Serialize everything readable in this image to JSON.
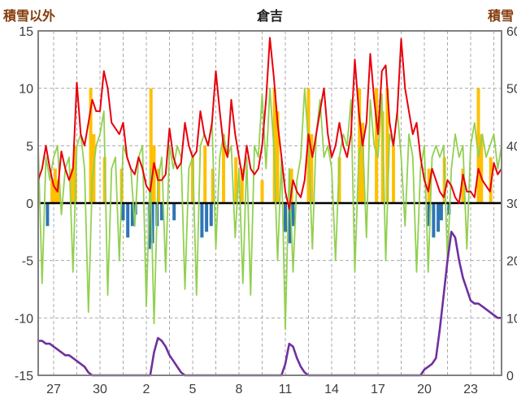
{
  "header": {
    "left_axis_title": "積雪以外",
    "chart_title": "倉吉",
    "right_axis_title": "積雪"
  },
  "colors": {
    "axis_title": "#843c0c",
    "grid": "#aaaaaa",
    "border": "#808080",
    "zero_line": "#000000",
    "temperature": "#e8000b",
    "green_series": "#92d050",
    "precip_bars": "#ffc000",
    "negative_bars": "#2e75b6",
    "snow_depth": "#7030a0"
  },
  "chart_data": {
    "type": "line",
    "title": "倉吉",
    "left_axis": {
      "label": "積雪以外",
      "min": -15,
      "max": 15,
      "ticks": [
        {
          "v": 15,
          "label": "15"
        },
        {
          "v": 10,
          "label": "10"
        },
        {
          "v": 5,
          "label": "5"
        },
        {
          "v": 0,
          "label": "0"
        },
        {
          "v": -5,
          "label": "-5"
        },
        {
          "v": -10,
          "label": "-10"
        },
        {
          "v": -15,
          "label": "-15"
        }
      ]
    },
    "right_axis": {
      "label": "積雪",
      "min": 0,
      "max": 60,
      "ticks": [
        {
          "v": 60,
          "label": "60"
        },
        {
          "v": 50,
          "label": "50"
        },
        {
          "v": 40,
          "label": "40"
        },
        {
          "v": 30,
          "label": "30"
        },
        {
          "v": 20,
          "label": "20"
        },
        {
          "v": 10,
          "label": "10"
        },
        {
          "v": 0,
          "label": "0"
        }
      ]
    },
    "x_axis": {
      "domain_days": [
        0,
        30
      ],
      "gridline_step_days": 1.5,
      "ticks": [
        {
          "day": 1,
          "label": "27"
        },
        {
          "day": 4,
          "label": "30"
        },
        {
          "day": 7,
          "label": "2"
        },
        {
          "day": 10,
          "label": "5"
        },
        {
          "day": 13,
          "label": "8"
        },
        {
          "day": 16,
          "label": "11"
        },
        {
          "day": 19,
          "label": "14"
        },
        {
          "day": 22,
          "label": "17"
        },
        {
          "day": 25,
          "label": "20"
        },
        {
          "day": 28,
          "label": "23"
        }
      ]
    },
    "series": [
      {
        "name": "temperature-red-line",
        "axis": "left",
        "color": "#e8000b",
        "width": 2,
        "x_start": 0,
        "x_step": 0.25,
        "values": [
          2,
          3,
          5,
          3,
          1.5,
          1,
          4.5,
          3,
          2,
          3,
          10.5,
          6,
          5,
          7,
          9,
          8,
          8,
          11.5,
          10,
          7,
          6.5,
          6,
          7,
          4,
          3,
          2.5,
          4,
          3,
          1.5,
          1,
          3.5,
          2,
          2,
          2.5,
          6.5,
          4,
          3,
          3.5,
          7,
          5,
          4,
          4.5,
          8,
          6,
          5,
          7,
          11.5,
          8,
          5,
          4,
          9,
          6,
          4,
          2,
          5,
          3,
          2.5,
          3,
          5,
          9,
          14.4,
          11,
          7,
          4,
          1,
          -0.5,
          2,
          1,
          0.5,
          2,
          6,
          4,
          6,
          8,
          10,
          6,
          4,
          5,
          7,
          5,
          4,
          6,
          12.5,
          8,
          5,
          7,
          13,
          9,
          6,
          11.5,
          12,
          7,
          5,
          8,
          14.3,
          10,
          8,
          6,
          7,
          4,
          2,
          1,
          3,
          2,
          1,
          0.5,
          2,
          1.5,
          0.5,
          0,
          2.5,
          1,
          1,
          0.5,
          3,
          2,
          1.5,
          1,
          3.5,
          2.5,
          3
        ]
      },
      {
        "name": "green-line",
        "axis": "left",
        "color": "#92d050",
        "width": 1.8,
        "x_start": 0,
        "x_step": 0.25,
        "values": [
          5,
          -7,
          4,
          2,
          4,
          5,
          -1,
          3,
          4,
          -6,
          5,
          6,
          3,
          -9.5,
          2,
          5,
          6,
          8,
          -8,
          3,
          4,
          -5,
          5,
          4,
          3,
          -2,
          4,
          5,
          -9,
          3,
          -10.5,
          2,
          4,
          -6,
          5,
          3,
          5,
          4,
          -7.5,
          3,
          4,
          -8,
          5,
          6,
          5,
          7,
          -4,
          4,
          6,
          4,
          5,
          -3,
          3,
          -7,
          4,
          -8,
          5,
          4,
          9.5,
          3,
          10,
          5,
          -5,
          4,
          -11,
          3,
          -6,
          2,
          4,
          10,
          5,
          -4,
          6,
          9,
          4,
          5,
          3,
          -5,
          4,
          6,
          5,
          9,
          -6,
          4,
          6,
          -3,
          9,
          5,
          4,
          9.5,
          -5,
          6,
          5,
          8,
          4,
          -2,
          6,
          4,
          -6,
          3,
          5,
          -6,
          4,
          5,
          4,
          5,
          -5,
          3,
          6,
          4,
          5,
          -4,
          5,
          7,
          4,
          6,
          4,
          5,
          6,
          3,
          5
        ]
      },
      {
        "name": "snow-depth-purple-line",
        "axis": "right",
        "color": "#7030a0",
        "width": 2.6,
        "x_start": 0,
        "x_step": 0.25,
        "values": [
          6,
          6,
          5.5,
          5.5,
          5,
          4.5,
          4,
          3.5,
          3.5,
          3,
          2.5,
          2,
          1.5,
          0.5,
          0,
          0,
          0,
          0,
          0,
          0,
          0,
          0,
          0,
          0,
          0,
          0,
          0,
          0,
          0,
          0,
          4,
          6.5,
          6,
          5,
          3.5,
          2.5,
          1.5,
          0.5,
          0,
          0,
          0,
          0,
          0,
          0,
          0,
          0,
          0,
          0,
          0,
          0,
          0,
          0,
          0,
          0,
          0,
          0,
          0,
          0,
          0,
          0,
          0,
          0,
          0,
          0,
          2,
          5.5,
          5,
          3,
          1.5,
          0.5,
          0,
          0,
          0,
          0,
          0,
          0,
          0,
          0,
          0,
          0,
          0,
          0,
          0,
          0,
          0,
          0,
          0,
          0,
          0,
          0,
          0,
          0,
          0,
          0,
          0,
          0,
          0,
          0,
          0,
          0,
          1,
          1.5,
          2,
          3,
          8,
          14,
          20,
          25,
          24,
          20,
          17,
          15,
          13,
          12.5,
          12.5,
          12,
          11.5,
          11,
          10.5,
          10,
          10
        ]
      }
    ],
    "bars": [
      {
        "name": "precipitation-orange-bars",
        "axis": "left",
        "color": "#ffc000",
        "points": [
          [
            0.9,
            2
          ],
          [
            1.1,
            3
          ],
          [
            1.3,
            2
          ],
          [
            2.2,
            3
          ],
          [
            2.4,
            5
          ],
          [
            3.4,
            10
          ],
          [
            3.6,
            6
          ],
          [
            4.3,
            4
          ],
          [
            5.4,
            3
          ],
          [
            7.3,
            10
          ],
          [
            7.5,
            5
          ],
          [
            7.8,
            3
          ],
          [
            10.0,
            4
          ],
          [
            10.8,
            5
          ],
          [
            11.3,
            3
          ],
          [
            12.0,
            6
          ],
          [
            12.8,
            4
          ],
          [
            13.2,
            3
          ],
          [
            14.5,
            2
          ],
          [
            15.3,
            10
          ],
          [
            15.5,
            8
          ],
          [
            16.4,
            3
          ],
          [
            17.5,
            10
          ],
          [
            17.7,
            6
          ],
          [
            19.5,
            4
          ],
          [
            20.8,
            10
          ],
          [
            21.0,
            7
          ],
          [
            21.9,
            10
          ],
          [
            22.3,
            8
          ],
          [
            22.6,
            10
          ],
          [
            23.0,
            5
          ],
          [
            25.3,
            3
          ],
          [
            26.3,
            4
          ],
          [
            27.5,
            3
          ],
          [
            28.5,
            10
          ],
          [
            28.7,
            6
          ],
          [
            29.3,
            4
          ]
        ]
      },
      {
        "name": "negative-blue-bars",
        "axis": "left",
        "color": "#2e75b6",
        "points": [
          [
            0.6,
            -2
          ],
          [
            5.5,
            -1.5
          ],
          [
            5.8,
            -3
          ],
          [
            6.1,
            -2
          ],
          [
            6.3,
            -1
          ],
          [
            7.2,
            -4
          ],
          [
            7.4,
            -3.5
          ],
          [
            7.7,
            -2
          ],
          [
            8.0,
            -1.5
          ],
          [
            8.8,
            -1.5
          ],
          [
            10.6,
            -3
          ],
          [
            10.9,
            -2.5
          ],
          [
            11.2,
            -2
          ],
          [
            16.0,
            -2.5
          ],
          [
            16.3,
            -3.5
          ],
          [
            16.5,
            -2
          ],
          [
            25.3,
            -2
          ],
          [
            25.6,
            -3
          ],
          [
            25.9,
            -2.5
          ],
          [
            26.1,
            -1.5
          ],
          [
            26.6,
            -1
          ]
        ]
      }
    ]
  }
}
